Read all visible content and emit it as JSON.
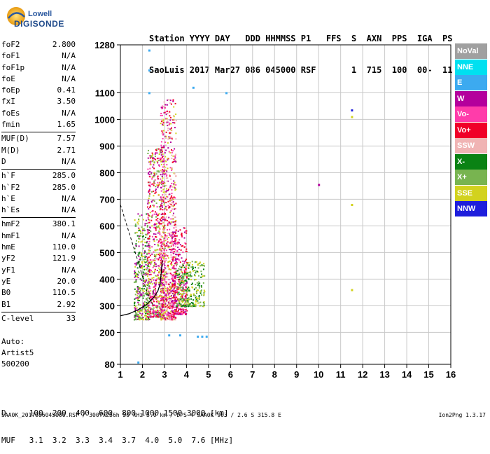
{
  "logo": {
    "brand": "Lowell",
    "product": "DIGISONDE"
  },
  "header": {
    "line1": "Station YYYY DAY   DDD HHMMSS P1   FFS  S  AXN  PPS  IGA  PS",
    "line2": "SaoLuis 2017 Mar27 086 045000 RSF       1  715  100  00-  11"
  },
  "params": {
    "group1": [
      {
        "label": "foF2",
        "value": "2.800"
      },
      {
        "label": "foF1",
        "value": "N/A"
      },
      {
        "label": "foF1p",
        "value": "N/A"
      },
      {
        "label": "foE",
        "value": "N/A"
      },
      {
        "label": "foEp",
        "value": "0.41"
      },
      {
        "label": "fxI",
        "value": "3.50"
      },
      {
        "label": "foEs",
        "value": "N/A"
      },
      {
        "label": "fmin",
        "value": "1.65"
      }
    ],
    "group2": [
      {
        "label": "MUF(D)",
        "value": "7.57"
      },
      {
        "label": "M(D)",
        "value": "2.71"
      },
      {
        "label": "D",
        "value": "N/A"
      }
    ],
    "group3": [
      {
        "label": "h`F",
        "value": "285.0"
      },
      {
        "label": "h`F2",
        "value": "285.0"
      },
      {
        "label": "h`E",
        "value": "N/A"
      },
      {
        "label": "h`Es",
        "value": "N/A"
      }
    ],
    "group4": [
      {
        "label": "hmF2",
        "value": "380.1"
      },
      {
        "label": "hmF1",
        "value": "N/A"
      },
      {
        "label": "hmE",
        "value": "110.0"
      },
      {
        "label": "yF2",
        "value": "121.9"
      },
      {
        "label": "yF1",
        "value": "N/A"
      },
      {
        "label": "yE",
        "value": "20.0"
      },
      {
        "label": "B0",
        "value": "110.5"
      },
      {
        "label": "B1",
        "value": "2.92"
      }
    ],
    "group5": [
      {
        "label": "C-level",
        "value": "33"
      }
    ]
  },
  "auto": {
    "line1": "Auto:",
    "line2": "Artist5",
    "line3": "500200"
  },
  "table": {
    "row1": "D     100  200  400  600  800 1000 1500 3000 [km]",
    "row2": "MUF   3.1  3.2  3.3  3.4  3.7  4.0  5.0  7.6 [MHz]"
  },
  "footer": "SAA0K_2017086045000.RSF / 300fx256h 50 kHz 5.0 km / DPS-4 SAA0K 903 / 2.6 S 315.8 E",
  "version": "Ion2Png 1.3.17",
  "legend": [
    {
      "label": "NoVal",
      "color": "#a0a0a0"
    },
    {
      "label": "NNE",
      "color": "#00e0f0"
    },
    {
      "label": "E",
      "color": "#3caaf0"
    },
    {
      "label": "W",
      "color": "#b4009c"
    },
    {
      "label": "Vo-",
      "color": "#ff3caa"
    },
    {
      "label": "Vo+",
      "color": "#f00028"
    },
    {
      "label": "SSW",
      "color": "#f0b4b4"
    },
    {
      "label": "X-",
      "color": "#0a8214"
    },
    {
      "label": "X+",
      "color": "#78b450"
    },
    {
      "label": "SSE",
      "color": "#d2d21e"
    },
    {
      "label": "NNW",
      "color": "#1e1edc"
    }
  ],
  "chart_data": {
    "type": "scatter",
    "xlabel": "",
    "ylabel": "",
    "xlim": [
      1,
      16
    ],
    "ylim": [
      80,
      1280
    ],
    "x_ticks": [
      "1",
      "2",
      "3",
      "4",
      "5",
      "6",
      "7",
      "8",
      "9",
      "10",
      "11",
      "12",
      "13",
      "14",
      "15",
      "16"
    ],
    "y_ticks": [
      {
        "value": 80,
        "label": "80"
      },
      {
        "value": 200,
        "label": "200"
      },
      {
        "value": 300,
        "label": "300"
      },
      {
        "value": 400,
        "label": "400"
      },
      {
        "value": 500,
        "label": "500"
      },
      {
        "value": 600,
        "label": "600"
      },
      {
        "value": 700,
        "label": "700"
      },
      {
        "value": 800,
        "label": "800"
      },
      {
        "value": 900,
        "label": "900"
      },
      {
        "value": 1000,
        "label": "1000"
      },
      {
        "value": 1100,
        "label": "1100"
      },
      {
        "value": 1280,
        "label": "1280"
      }
    ],
    "grid": true,
    "echo_clusters": [
      {
        "f_min": 1.6,
        "f_max": 2.3,
        "h_min": 250,
        "h_max": 650,
        "colors": [
          "#78b450",
          "#0a8214",
          "#d2d21e",
          "#b4009c"
        ]
      },
      {
        "f_min": 2.2,
        "f_max": 3.0,
        "h_min": 260,
        "h_max": 900,
        "colors": [
          "#b4009c",
          "#f00028",
          "#d2d21e",
          "#78b450",
          "#ff3caa"
        ]
      },
      {
        "f_min": 2.8,
        "f_max": 3.5,
        "h_min": 250,
        "h_max": 1080,
        "colors": [
          "#b4009c",
          "#f00028",
          "#ff3caa",
          "#d2d21e",
          "#f0b4b4"
        ]
      },
      {
        "f_min": 3.3,
        "f_max": 4.0,
        "h_min": 270,
        "h_max": 600,
        "colors": [
          "#b4009c",
          "#ff3caa",
          "#f00028"
        ]
      },
      {
        "f_min": 3.5,
        "f_max": 4.8,
        "h_min": 300,
        "h_max": 470,
        "colors": [
          "#d2d21e",
          "#78b450",
          "#0a8214"
        ]
      }
    ],
    "isolated_points": [
      {
        "f": 2.3,
        "h": 1260,
        "color": "#3caaf0"
      },
      {
        "f": 2.3,
        "h": 1185,
        "color": "#3caaf0"
      },
      {
        "f": 2.3,
        "h": 1100,
        "color": "#3caaf0"
      },
      {
        "f": 4.3,
        "h": 1120,
        "color": "#3caaf0"
      },
      {
        "f": 5.8,
        "h": 1100,
        "color": "#3caaf0"
      },
      {
        "f": 11.5,
        "h": 1035,
        "color": "#1e1edc"
      },
      {
        "f": 11.5,
        "h": 1010,
        "color": "#d2d21e"
      },
      {
        "f": 10.0,
        "h": 755,
        "color": "#b4009c"
      },
      {
        "f": 11.5,
        "h": 680,
        "color": "#d2d21e"
      },
      {
        "f": 11.5,
        "h": 360,
        "color": "#d2d21e"
      },
      {
        "f": 3.2,
        "h": 190,
        "color": "#3caaf0"
      },
      {
        "f": 3.7,
        "h": 190,
        "color": "#3caaf0"
      },
      {
        "f": 4.5,
        "h": 185,
        "color": "#3caaf0"
      },
      {
        "f": 4.7,
        "h": 185,
        "color": "#3caaf0"
      },
      {
        "f": 4.9,
        "h": 185,
        "color": "#3caaf0"
      },
      {
        "f": 1.8,
        "h": 88,
        "color": "#3caaf0"
      }
    ],
    "profile_curve": [
      [
        1.0,
        262
      ],
      [
        1.4,
        270
      ],
      [
        1.8,
        285
      ],
      [
        2.2,
        305
      ],
      [
        2.5,
        330
      ],
      [
        2.7,
        355
      ],
      [
        2.8,
        380
      ],
      [
        2.85,
        420
      ],
      [
        2.9,
        470
      ]
    ],
    "dashed_curve": [
      [
        1.0,
        680
      ],
      [
        1.3,
        600
      ],
      [
        1.6,
        520
      ],
      [
        1.9,
        440
      ],
      [
        2.1,
        380
      ],
      [
        2.3,
        330
      ],
      [
        2.5,
        300
      ]
    ]
  }
}
